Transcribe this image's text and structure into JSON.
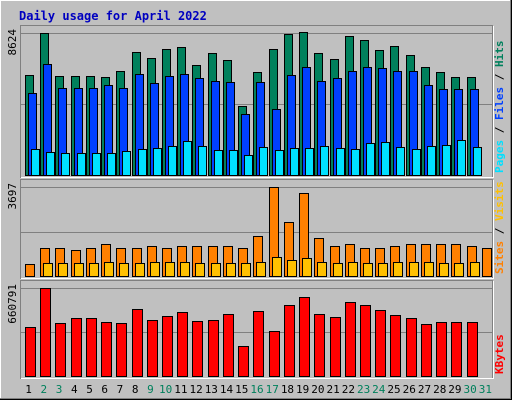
{
  "chart_data": {
    "type": "bar",
    "title": "Daily usage for April 2022",
    "colors": {
      "background": "#c0c0c0",
      "title": "#0000c0",
      "hits": "#00805c",
      "files": "#0040ff",
      "pages": "#00e0ff",
      "visits": "#ffc000",
      "sites": "#ff8000",
      "kbytes": "#ff0000",
      "weekend_label": "#00805c",
      "weekday_label": "#000000"
    },
    "days": [
      "1",
      "2",
      "3",
      "4",
      "5",
      "6",
      "7",
      "8",
      "9",
      "10",
      "11",
      "12",
      "13",
      "14",
      "15",
      "16",
      "17",
      "18",
      "19",
      "20",
      "21",
      "22",
      "23",
      "24",
      "25",
      "26",
      "27",
      "28",
      "29",
      "30",
      "31"
    ],
    "weekend_days": [
      "2",
      "3",
      "9",
      "10",
      "16",
      "17",
      "23",
      "24",
      "30",
      "31"
    ],
    "panels": [
      {
        "id": "hits-files-pages",
        "max_label": "8624",
        "ymax": 8624,
        "side_labels": [
          {
            "text": "Pages",
            "color": "#00e0ff"
          },
          {
            "text": " / ",
            "color": "#000000"
          },
          {
            "text": "Files",
            "color": "#0040ff"
          },
          {
            "text": " / ",
            "color": "#000000"
          },
          {
            "text": "Hits",
            "color": "#00805c"
          }
        ],
        "series": [
          {
            "name": "Hits",
            "color": "#00805c",
            "values": [
              6070,
              8624,
              6040,
              6040,
              6040,
              5950,
              6300,
              7480,
              7120,
              7660,
              7750,
              6660,
              7390,
              6990,
              4210,
              6230,
              7660,
              8540,
              8710,
              7390,
              7040,
              8460,
              8180,
              7570,
              7840,
              7300,
              6580,
              6240,
              5980,
              5970,
              null
            ]
          },
          {
            "name": "Files",
            "color": "#0040ff",
            "values": [
              4980,
              6750,
              5290,
              5290,
              5290,
              5470,
              5290,
              6120,
              5560,
              6040,
              6120,
              5910,
              5730,
              5640,
              3690,
              5650,
              4000,
              6050,
              6540,
              5730,
              5910,
              6300,
              6560,
              6470,
              6330,
              6320,
              5460,
              5210,
              5230,
              5210,
              null
            ]
          },
          {
            "name": "Pages",
            "color": "#00e0ff",
            "values": [
              1580,
              1410,
              1360,
              1320,
              1340,
              1320,
              1480,
              1590,
              1630,
              1770,
              2060,
              1760,
              1500,
              1500,
              1210,
              1690,
              1520,
              1650,
              1650,
              1760,
              1640,
              1600,
              1940,
              1990,
              1680,
              1550,
              1770,
              1800,
              2130,
              1730,
              null
            ]
          }
        ]
      },
      {
        "id": "sites-visits",
        "max_label": "3697",
        "ymax": 3697,
        "side_labels": [
          {
            "text": "Sites",
            "color": "#ff8000"
          },
          {
            "text": " / ",
            "color": "#000000"
          },
          {
            "text": "Visits",
            "color": "#ffc000"
          }
        ],
        "series": [
          {
            "name": "Sites",
            "color": "#ff8000",
            "values": [
              510,
              1170,
              1170,
              1090,
              1170,
              1320,
              1170,
              1160,
              1250,
              1170,
              1250,
              1250,
              1250,
              1250,
              1170,
              1660,
              3697,
              2240,
              3440,
              1570,
              1250,
              1340,
              1170,
              1170,
              1250,
              1340,
              1330,
              1330,
              1330,
              1250,
              1170
            ]
          },
          {
            "name": "Visits",
            "color": "#ffc000",
            "values": [
              0,
              520,
              520,
              520,
              560,
              600,
              520,
              530,
              600,
              600,
              600,
              560,
              560,
              560,
              520,
              600,
              800,
              680,
              760,
              600,
              560,
              600,
              520,
              520,
              600,
              600,
              600,
              560,
              560,
              600,
              null
            ]
          }
        ]
      },
      {
        "id": "kbytes",
        "max_label": "660791",
        "ymax": 660791,
        "side_labels": [
          {
            "text": "KBytes",
            "color": "#ff0000"
          }
        ],
        "series": [
          {
            "name": "KBytes",
            "color": "#ff0000",
            "values": [
              366000,
              660791,
              401000,
              437000,
              437000,
              409000,
              401000,
              505000,
              419000,
              452000,
              479000,
              411000,
              418000,
              468000,
              227000,
              488000,
              339000,
              532000,
              594000,
              464000,
              442000,
              557000,
              530000,
              495000,
              457000,
              432000,
              390000,
              406000,
              404000,
              409000,
              null
            ]
          }
        ]
      }
    ]
  }
}
